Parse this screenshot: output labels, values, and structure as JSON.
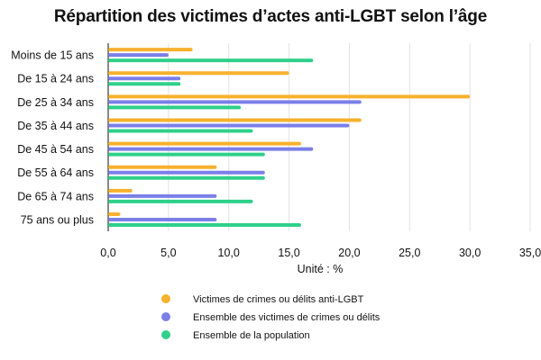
{
  "chart_data": {
    "type": "bar",
    "orientation": "horizontal",
    "title": "Répartition des victimes d’actes anti-LGBT selon l’âge",
    "xlabel": "Unité : %",
    "ylabel": "",
    "xlim": [
      0,
      35
    ],
    "xticks": [
      0,
      5,
      10,
      15,
      20,
      25,
      30,
      35
    ],
    "xtick_labels": [
      "0,0",
      "5,0",
      "10,0",
      "15,0",
      "20,0",
      "25,0",
      "30,0",
      "35,0"
    ],
    "grid": "vertical",
    "legend_position": "bottom",
    "categories": [
      "Moins de 15 ans",
      "De 15 à 24 ans",
      "De 25 à 34 ans",
      "De 35 à 44 ans",
      "De 45 à 54 ans",
      "De 55 à 64 ans",
      "De 65 à 74 ans",
      "75 ans ou plus"
    ],
    "series": [
      {
        "name": "Victimes de crimes ou délits anti-LGBT",
        "color": "#f7b12d",
        "values": [
          7,
          15,
          30,
          21,
          16,
          9,
          2,
          1
        ]
      },
      {
        "name": "Ensemble des victimes de crimes ou délits",
        "color": "#7b7fe8",
        "values": [
          5,
          6,
          21,
          20,
          17,
          13,
          9,
          9
        ]
      },
      {
        "name": "Ensemble de la population",
        "color": "#2fd08a",
        "values": [
          17,
          6,
          11,
          12,
          13,
          13,
          12,
          16
        ]
      }
    ]
  }
}
